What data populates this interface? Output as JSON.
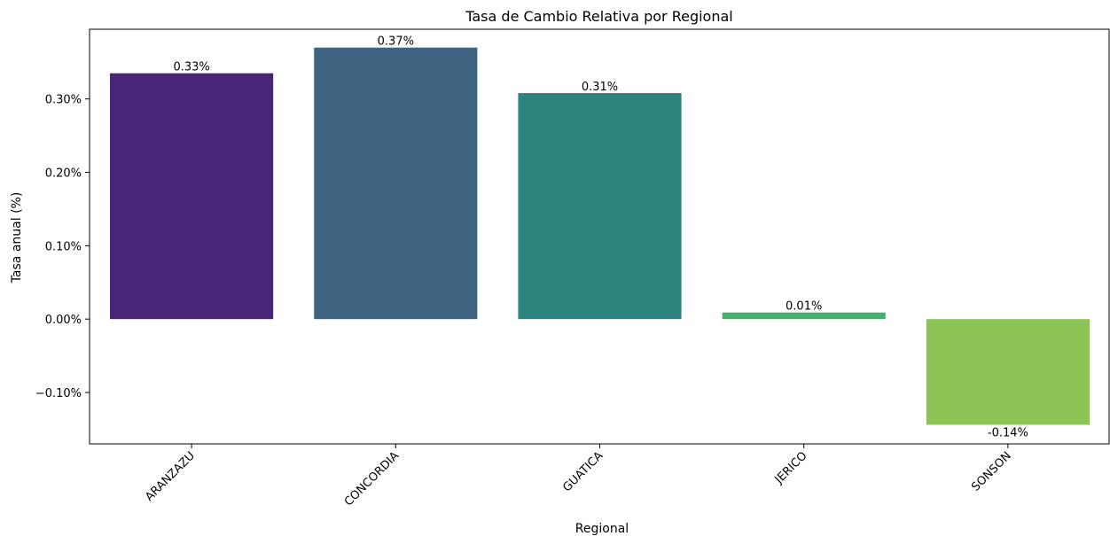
{
  "chart_data": {
    "type": "bar",
    "title": "Tasa de Cambio Relativa por Regional",
    "xlabel": "Regional",
    "ylabel": "Tasa anual (%)",
    "categories": [
      "ARANZAZU",
      "CONCORDIA",
      "GUATICA",
      "JERICO",
      "SONSON"
    ],
    "values": [
      0.335,
      0.37,
      0.308,
      0.009,
      -0.144
    ],
    "data_labels": [
      "0.33%",
      "0.37%",
      "0.31%",
      "0.01%",
      "-0.14%"
    ],
    "colors": [
      "#482576",
      "#3e6482",
      "#2d837e",
      "#44b26f",
      "#8cc556"
    ],
    "ylim": [
      -0.17,
      0.395
    ],
    "yticks": [
      -0.1,
      0.0,
      0.1,
      0.2,
      0.3
    ],
    "ytick_labels": [
      "−0.10%",
      "0.00%",
      "0.10%",
      "0.20%",
      "0.30%"
    ],
    "grid": false,
    "legend": "none"
  }
}
